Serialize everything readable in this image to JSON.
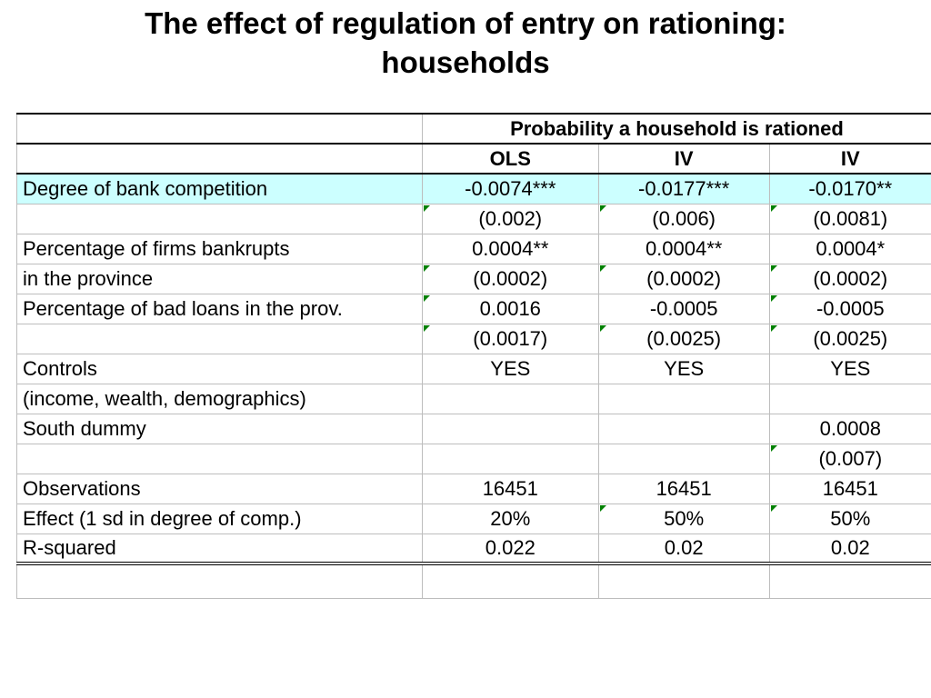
{
  "title_line1": "The effect of regulation of entry on rationing:",
  "title_line2": "households",
  "table": {
    "header_group": "Probability a household is rationed",
    "columns": [
      "OLS",
      "IV",
      "IV"
    ],
    "rows": [
      {
        "label": "Degree of bank competition",
        "values": [
          "-0.0074***",
          "-0.0177***",
          "-0.0170**"
        ]
      },
      {
        "label": "",
        "values": [
          "(0.002)",
          "(0.006)",
          "(0.0081)"
        ]
      },
      {
        "label": "Percentage of firms bankrupts",
        "values": [
          "0.0004**",
          "0.0004**",
          "0.0004*"
        ]
      },
      {
        "label": "in the province",
        "values": [
          "(0.0002)",
          "(0.0002)",
          "(0.0002)"
        ]
      },
      {
        "label": "Percentage of bad loans in the prov.",
        "values": [
          "0.0016",
          "-0.0005",
          "-0.0005"
        ]
      },
      {
        "label": "",
        "values": [
          "(0.0017)",
          "(0.0025)",
          "(0.0025)"
        ]
      },
      {
        "label": "Controls",
        "values": [
          "YES",
          "YES",
          "YES"
        ]
      },
      {
        "label": "(income, wealth, demographics)",
        "values": [
          "",
          "",
          ""
        ]
      },
      {
        "label": "South dummy",
        "values": [
          "",
          "",
          "0.0008"
        ]
      },
      {
        "label": "",
        "values": [
          "",
          "",
          "(0.007)"
        ]
      },
      {
        "label": "Observations",
        "values": [
          "16451",
          "16451",
          "16451"
        ]
      },
      {
        "label": "Effect (1 sd in degree of comp.)",
        "values": [
          "20%",
          "50%",
          "50%"
        ]
      },
      {
        "label": "R-squared",
        "values": [
          "0.022",
          "0.02",
          "0.02"
        ]
      }
    ]
  },
  "colors": {
    "highlight_row": "#ccffff",
    "cell_marker": "#008000"
  }
}
